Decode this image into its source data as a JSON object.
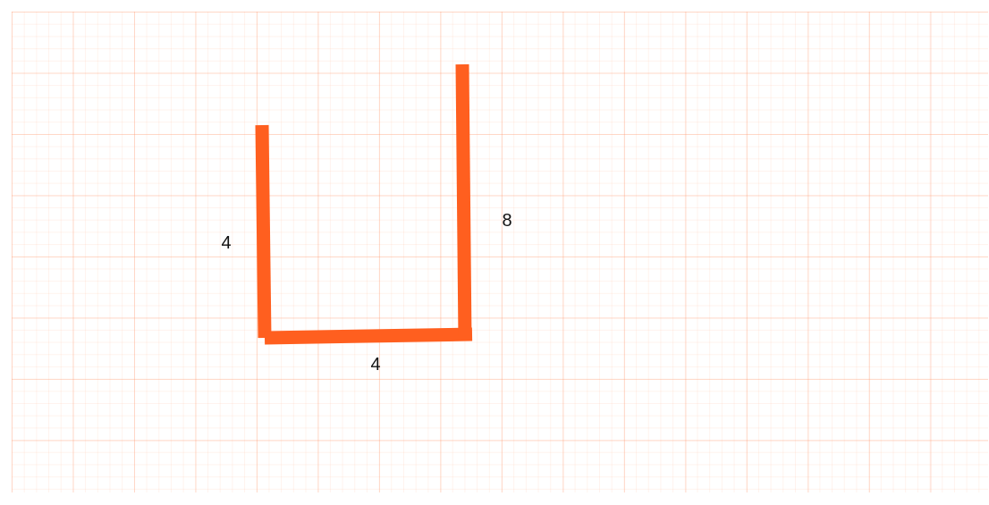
{
  "diagram": {
    "stroke_color": "#ff5f1f",
    "grid_color": "#ffb394",
    "segments": {
      "left": {
        "label": "4"
      },
      "bottom": {
        "label": "4"
      },
      "right": {
        "label": "8"
      }
    }
  }
}
